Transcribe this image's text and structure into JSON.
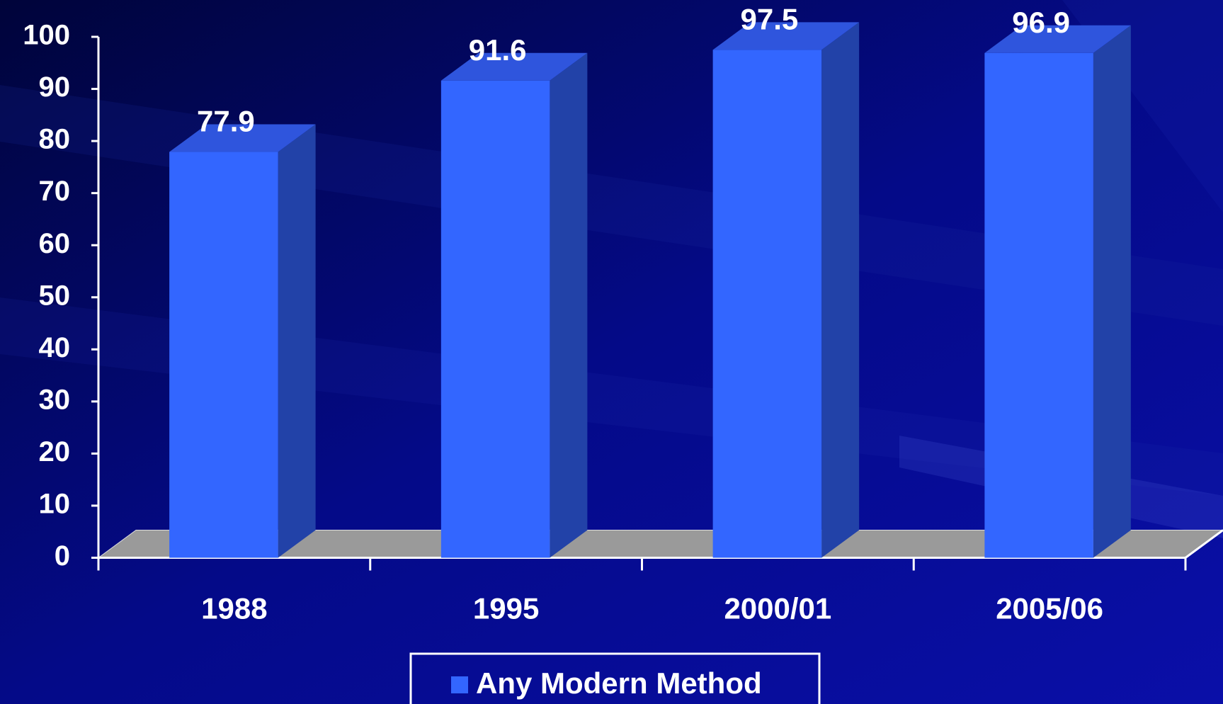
{
  "chart_data": {
    "type": "bar3d",
    "categories": [
      "1988",
      "1995",
      "2000/01",
      "2005/06"
    ],
    "series": [
      {
        "name": "Any Modern Method",
        "color": "#3366ff",
        "values": [
          77.9,
          91.6,
          97.5,
          96.9
        ]
      }
    ],
    "ylim": [
      0,
      100
    ],
    "yticks": [
      0,
      10,
      20,
      30,
      40,
      50,
      60,
      70,
      80,
      90,
      100
    ],
    "legend": "bottom",
    "grid": false
  }
}
